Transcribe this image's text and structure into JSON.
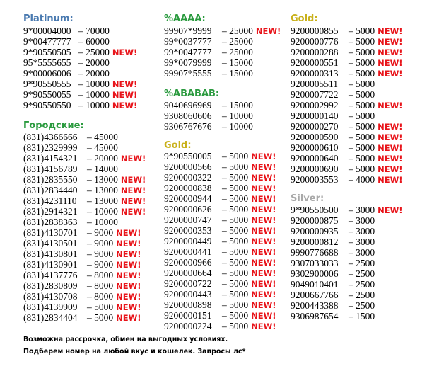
{
  "colors": {
    "platinum": "#4a7ab0",
    "city": "#2a9a3e",
    "gold": "#c9b11c",
    "silver": "#a9a9a9",
    "new": "#e8141a"
  },
  "new_label": "NEW!",
  "col1": {
    "platinum": {
      "title": "Platinum:",
      "items": [
        {
          "num": "9*00004000",
          "price": "– 70000",
          "new": false
        },
        {
          "num": "9*00477777",
          "price": "– 60000",
          "new": false
        },
        {
          "num": "9*90550505",
          "price": "– 25000",
          "new": true
        },
        {
          "num": "95*5555655",
          "price": "– 20000",
          "new": false
        },
        {
          "num": "9*00006006",
          "price": "– 20000",
          "new": false
        },
        {
          "num": "9*90550555",
          "price": "– 10000",
          "new": true
        },
        {
          "num": "9*90550055",
          "price": "– 10000",
          "new": true
        },
        {
          "num": "9*90550550",
          "price": "– 10000",
          "new": true
        }
      ]
    },
    "city": {
      "title": "Городские:",
      "items": [
        {
          "num": "(831)4366666",
          "price": "– 45000",
          "new": false
        },
        {
          "num": "(831)2329999",
          "price": "– 45000",
          "new": false
        },
        {
          "num": "(831)4154321",
          "price": "– 20000",
          "new": true
        },
        {
          "num": "(831)4156789",
          "price": "– 14000",
          "new": false
        },
        {
          "num": "(831)2835550",
          "price": "– 13000",
          "new": true
        },
        {
          "num": "(831)2834440",
          "price": "– 13000",
          "new": true
        },
        {
          "num": "(831)4231110",
          "price": "– 13000",
          "new": true
        },
        {
          "num": "(831)2914321",
          "price": "– 10000",
          "new": true
        },
        {
          "num": "(831)2838363",
          "price": "– 10000",
          "new": false
        },
        {
          "num": "(831)4130701",
          "price": "– 9000",
          "new": true
        },
        {
          "num": "(831)4130501",
          "price": "– 9000",
          "new": true
        },
        {
          "num": "(831)4130801",
          "price": "– 9000",
          "new": true
        },
        {
          "num": "(831)4130901",
          "price": "– 9000",
          "new": true
        },
        {
          "num": "(831)4137776",
          "price": "– 8000",
          "new": true
        },
        {
          "num": "(831)2830809",
          "price": "– 8000",
          "new": true
        },
        {
          "num": "(831)4130708",
          "price": "– 8000",
          "new": true
        },
        {
          "num": "(831)4139909",
          "price": "– 5000",
          "new": true
        },
        {
          "num": "(831)2834404",
          "price": "– 5000",
          "new": true
        }
      ]
    }
  },
  "col2": {
    "aaaa": {
      "title": "%AAAA:",
      "items": [
        {
          "num": "99907*9999",
          "price": "– 25000",
          "new": true
        },
        {
          "num": "99*0037777",
          "price": "– 25000",
          "new": false
        },
        {
          "num": "99*0047777",
          "price": "– 25000",
          "new": false
        },
        {
          "num": "99*0079999",
          "price": "– 15000",
          "new": false
        },
        {
          "num": "99907*5555",
          "price": "– 15000",
          "new": false
        }
      ]
    },
    "ababab": {
      "title": "%ABABAB:",
      "items": [
        {
          "num": "9040696969",
          "price": "– 15000",
          "new": false
        },
        {
          "num": "9308060606",
          "price": "– 10000",
          "new": false
        },
        {
          "num": "9306767676",
          "price": "– 10000",
          "new": false
        }
      ]
    },
    "gold": {
      "title": "Gold:",
      "items": [
        {
          "num": "9*90550005",
          "price": "– 5000",
          "new": true
        },
        {
          "num": "9200000566",
          "price": "– 5000",
          "new": true
        },
        {
          "num": "9200000322",
          "price": "– 5000",
          "new": true
        },
        {
          "num": "9200000838",
          "price": "– 5000",
          "new": true
        },
        {
          "num": "9200000944",
          "price": "– 5000",
          "new": true
        },
        {
          "num": "9200000626",
          "price": "– 5000",
          "new": true
        },
        {
          "num": "9200000747",
          "price": "– 5000",
          "new": true
        },
        {
          "num": "9200000353",
          "price": "– 5000",
          "new": true
        },
        {
          "num": "9200000449",
          "price": "– 5000",
          "new": true
        },
        {
          "num": "9200000441",
          "price": "– 5000",
          "new": true
        },
        {
          "num": "9200000966",
          "price": "– 5000",
          "new": true
        },
        {
          "num": "9200000664",
          "price": "– 5000",
          "new": true
        },
        {
          "num": "9200000722",
          "price": "– 5000",
          "new": true
        },
        {
          "num": "9200000443",
          "price": "– 5000",
          "new": true
        },
        {
          "num": "9200000898",
          "price": "– 5000",
          "new": true
        },
        {
          "num": "9200000151",
          "price": "– 5000",
          "new": true
        },
        {
          "num": "9200000224",
          "price": "– 5000",
          "new": true
        }
      ]
    }
  },
  "col3": {
    "gold": {
      "title": "Gold:",
      "items": [
        {
          "num": "9200000855",
          "price": "– 5000",
          "new": true
        },
        {
          "num": "9200000776",
          "price": "– 5000",
          "new": true
        },
        {
          "num": "9200000288",
          "price": "– 5000",
          "new": true
        },
        {
          "num": "9200000551",
          "price": "– 5000",
          "new": true
        },
        {
          "num": "9200000313",
          "price": "– 5000",
          "new": true
        },
        {
          "num": "9200005511",
          "price": "– 5000",
          "new": false
        },
        {
          "num": "9200007722",
          "price": "– 5000",
          "new": false
        },
        {
          "num": "9200002992",
          "price": "– 5000",
          "new": true
        },
        {
          "num": "9200000140",
          "price": "– 5000",
          "new": false
        },
        {
          "num": "9200000270",
          "price": "– 5000",
          "new": true
        },
        {
          "num": "9200000590",
          "price": "– 5000",
          "new": true
        },
        {
          "num": "9200000610",
          "price": "– 5000",
          "new": true
        },
        {
          "num": "9200000640",
          "price": "– 5000",
          "new": true
        },
        {
          "num": "9200000690",
          "price": "– 5000",
          "new": true
        },
        {
          "num": "9200003553",
          "price": "– 4000",
          "new": true
        }
      ]
    },
    "silver": {
      "title": "Silver:",
      "items": [
        {
          "num": "9*90550500",
          "price": "– 3000",
          "new": true
        },
        {
          "num": "9200000875",
          "price": "– 3000",
          "new": false
        },
        {
          "num": "9200000935",
          "price": "– 3000",
          "new": false
        },
        {
          "num": "9200000812",
          "price": "– 3000",
          "new": false
        },
        {
          "num": "9990776688",
          "price": "– 3000",
          "new": false
        },
        {
          "num": "9307033033",
          "price": "– 2500",
          "new": false
        },
        {
          "num": "9302900006",
          "price": "– 2500",
          "new": false
        },
        {
          "num": "9049010401",
          "price": "– 2500",
          "new": false
        },
        {
          "num": "9200667766",
          "price": "– 2500",
          "new": false
        },
        {
          "num": "9200443388",
          "price": "– 2500",
          "new": false
        },
        {
          "num": "9306987654",
          "price": "– 1500",
          "new": false
        }
      ]
    }
  },
  "footer": {
    "line1": "Возможна рассрочка, обмен на выгодных условиях.",
    "line2": "Подберем номер на любой вкус и кошелек. Запросы лс*"
  }
}
